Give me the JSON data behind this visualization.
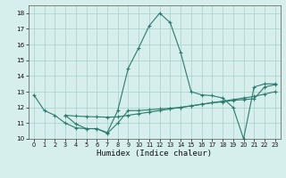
{
  "curve1_x": [
    0,
    1,
    2,
    3,
    4,
    5,
    6,
    7,
    8,
    9,
    10,
    11,
    12,
    13,
    14,
    15,
    16,
    17,
    18,
    19,
    20,
    21,
    22,
    23
  ],
  "curve1_y": [
    12.8,
    11.8,
    11.5,
    11.0,
    10.7,
    10.65,
    10.65,
    10.4,
    11.8,
    14.5,
    15.8,
    17.2,
    18.0,
    17.4,
    15.5,
    13.0,
    12.8,
    12.75,
    12.6,
    12.0,
    10.0,
    13.3,
    13.5,
    13.5
  ],
  "curve2_x": [
    3,
    4,
    5,
    6,
    7,
    8,
    9,
    10,
    11,
    12,
    13,
    14,
    15,
    16,
    17,
    18,
    19,
    20,
    21,
    22,
    23
  ],
  "curve2_y": [
    11.5,
    11.45,
    11.42,
    11.4,
    11.38,
    11.4,
    11.5,
    11.6,
    11.7,
    11.8,
    11.9,
    12.0,
    12.1,
    12.2,
    12.3,
    12.4,
    12.5,
    12.6,
    12.7,
    12.85,
    13.0
  ],
  "curve3_x": [
    3,
    4,
    5,
    6,
    7,
    8,
    9,
    10,
    11,
    12,
    13,
    14,
    15,
    16,
    17,
    18,
    19,
    20,
    21,
    22,
    23
  ],
  "curve3_y": [
    11.5,
    10.95,
    10.65,
    10.65,
    10.35,
    11.0,
    11.8,
    11.8,
    11.85,
    11.9,
    11.95,
    12.0,
    12.1,
    12.2,
    12.3,
    12.35,
    12.45,
    12.5,
    12.55,
    13.3,
    13.45
  ],
  "color": "#2a7d6e",
  "bg_color": "#d6eeec",
  "grid_color": "#aed4d0",
  "xlabel": "Humidex (Indice chaleur)",
  "ylim": [
    10,
    18.5
  ],
  "xlim": [
    -0.5,
    23.5
  ],
  "yticks": [
    10,
    11,
    12,
    13,
    14,
    15,
    16,
    17,
    18
  ],
  "xticks": [
    0,
    1,
    2,
    3,
    4,
    5,
    6,
    7,
    8,
    9,
    10,
    11,
    12,
    13,
    14,
    15,
    16,
    17,
    18,
    19,
    20,
    21,
    22,
    23
  ]
}
